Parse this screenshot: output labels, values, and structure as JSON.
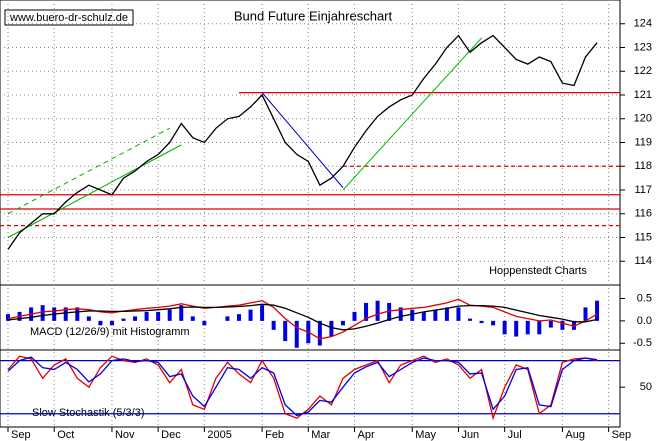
{
  "chart_data": [
    {
      "type": "line",
      "title": "Bund Future Einjahreschart",
      "annotations": [
        "www.buero-dr-schulz.de",
        "Hoppenstedt Charts"
      ],
      "ylim": [
        113,
        125
      ],
      "yticks": [
        114,
        115,
        116,
        117,
        118,
        119,
        120,
        121,
        122,
        123,
        124
      ],
      "grid": true,
      "series": [
        {
          "color": "#000000",
          "values": [
            114.5,
            115.2,
            115.6,
            116.0,
            116.0,
            116.5,
            116.9,
            117.2,
            117.0,
            116.8,
            117.5,
            117.8,
            118.2,
            118.5,
            119.0,
            119.8,
            119.2,
            119.0,
            119.6,
            120.0,
            120.1,
            120.5,
            121.0,
            120.0,
            119.0,
            118.5,
            118.2,
            117.2,
            117.5,
            118.0,
            118.8,
            119.5,
            120.1,
            120.5,
            120.8,
            121.0,
            121.7,
            122.3,
            123.0,
            123.5,
            122.8,
            123.2,
            123.5,
            123.0,
            122.5,
            122.3,
            122.6,
            122.4,
            121.5,
            121.4,
            122.6,
            123.2,
            null
          ]
        }
      ],
      "reference_lines": [
        {
          "value": 121.1,
          "from": 20,
          "color": "#e00000",
          "dashed": false
        },
        {
          "value": 118.0,
          "from": 29,
          "color": "#e00000",
          "dashed": true
        },
        {
          "value": 116.8,
          "from": 0,
          "color": "#e00000",
          "dashed": false
        },
        {
          "value": 116.2,
          "from": 0,
          "color": "#e00000",
          "dashed": false
        },
        {
          "value": 115.5,
          "from": 0,
          "color": "#e00000",
          "dashed": true
        }
      ],
      "trend_lines": [
        {
          "from": [
            0,
            115.0
          ],
          "to": [
            15,
            118.9
          ],
          "color": "#00b000",
          "dashed": false
        },
        {
          "from": [
            0,
            116.0
          ],
          "to": [
            14,
            119.6
          ],
          "color": "#00b000",
          "dashed": true
        },
        {
          "from": [
            29,
            117.0
          ],
          "to": [
            41,
            123.4
          ],
          "color": "#00c000",
          "dashed": false
        },
        {
          "from": [
            22,
            121.1
          ],
          "to": [
            29,
            117.1
          ],
          "color": "#0000d0",
          "dashed": false
        }
      ]
    },
    {
      "type": "line",
      "title": "MACD (12/26/9) mit Histogramm",
      "ylim": [
        -0.65,
        0.8
      ],
      "yticks": [
        0.5,
        {
          "value": 0,
          "label": "0.0"
        },
        -0.5
      ],
      "series": [
        {
          "type": "bar",
          "color": "#0000e0",
          "values": [
            0.15,
            0.2,
            0.3,
            0.35,
            0.3,
            0.3,
            0.3,
            0.1,
            -0.1,
            -0.1,
            0.05,
            0.1,
            0.2,
            0.2,
            0.25,
            0.35,
            0.1,
            -0.1,
            0.0,
            0.1,
            0.15,
            0.25,
            0.35,
            -0.2,
            -0.45,
            -0.6,
            -0.5,
            -0.55,
            -0.35,
            -0.1,
            0.2,
            0.4,
            0.45,
            0.4,
            0.3,
            0.25,
            0.2,
            0.25,
            0.3,
            0.3,
            0.05,
            -0.05,
            -0.1,
            -0.3,
            -0.35,
            -0.3,
            -0.3,
            -0.15,
            -0.2,
            -0.2,
            0.3,
            0.45,
            null
          ]
        },
        {
          "type": "line",
          "color": "#e00000",
          "values": [
            0.05,
            0.1,
            0.15,
            0.2,
            0.22,
            0.25,
            0.27,
            0.25,
            0.2,
            0.18,
            0.22,
            0.25,
            0.28,
            0.3,
            0.33,
            0.38,
            0.33,
            0.28,
            0.3,
            0.33,
            0.35,
            0.4,
            0.45,
            0.3,
            0.05,
            -0.15,
            -0.25,
            -0.4,
            -0.35,
            -0.25,
            -0.1,
            0.05,
            0.15,
            0.22,
            0.25,
            0.28,
            0.3,
            0.35,
            0.4,
            0.48,
            0.35,
            0.33,
            0.3,
            0.2,
            0.1,
            0.05,
            0.0,
            0.02,
            -0.05,
            -0.12,
            0.0,
            0.15,
            null
          ]
        },
        {
          "type": "line",
          "color": "#000000",
          "values": [
            0.02,
            0.05,
            0.08,
            0.12,
            0.15,
            0.18,
            0.2,
            0.22,
            0.22,
            0.21,
            0.21,
            0.22,
            0.23,
            0.25,
            0.27,
            0.3,
            0.31,
            0.3,
            0.3,
            0.31,
            0.32,
            0.34,
            0.37,
            0.35,
            0.28,
            0.18,
            0.08,
            -0.05,
            -0.15,
            -0.2,
            -0.18,
            -0.12,
            -0.05,
            0.03,
            0.1,
            0.15,
            0.2,
            0.24,
            0.28,
            0.33,
            0.34,
            0.34,
            0.33,
            0.3,
            0.24,
            0.18,
            0.12,
            0.08,
            0.04,
            -0.02,
            -0.02,
            0.03,
            null
          ]
        }
      ]
    },
    {
      "type": "line",
      "title": "Slow Stochastik (5/3/3)",
      "ylim": [
        5,
        92
      ],
      "yticks": [
        50
      ],
      "reference_lines": [
        {
          "value": 80,
          "from": 0,
          "color": "#0000c0",
          "dashed": false
        },
        {
          "value": 20,
          "from": 0,
          "color": "#0000c0",
          "dashed": false
        }
      ],
      "categories": [
        "Sep",
        null,
        null,
        null,
        "Oct",
        null,
        null,
        null,
        null,
        "Nov",
        null,
        null,
        null,
        "Dec",
        null,
        null,
        null,
        "2005",
        null,
        null,
        null,
        null,
        "Feb",
        null,
        null,
        null,
        "Mar",
        null,
        null,
        null,
        "Apr",
        null,
        null,
        null,
        null,
        "May",
        null,
        null,
        null,
        "Jun",
        null,
        null,
        null,
        "Jul",
        null,
        null,
        null,
        null,
        "Aug",
        null,
        null,
        null,
        "Sep"
      ],
      "series": [
        {
          "type": "line",
          "color": "#e00000",
          "values": [
            70,
            85,
            82,
            60,
            75,
            82,
            60,
            50,
            72,
            85,
            80,
            78,
            82,
            75,
            55,
            70,
            30,
            25,
            60,
            78,
            65,
            55,
            80,
            60,
            20,
            15,
            25,
            40,
            30,
            60,
            70,
            75,
            80,
            55,
            75,
            80,
            85,
            78,
            82,
            75,
            60,
            70,
            15,
            50,
            75,
            70,
            20,
            30,
            78,
            82,
            83,
            80,
            null
          ]
        },
        {
          "type": "line",
          "color": "#0000e0",
          "values": [
            68,
            80,
            84,
            72,
            70,
            78,
            70,
            56,
            65,
            80,
            82,
            79,
            80,
            78,
            62,
            65,
            40,
            28,
            50,
            72,
            70,
            60,
            72,
            66,
            30,
            18,
            22,
            35,
            33,
            50,
            66,
            73,
            78,
            62,
            70,
            78,
            83,
            80,
            80,
            78,
            65,
            66,
            25,
            40,
            70,
            72,
            30,
            28,
            70,
            80,
            83,
            81,
            null
          ]
        }
      ]
    }
  ]
}
